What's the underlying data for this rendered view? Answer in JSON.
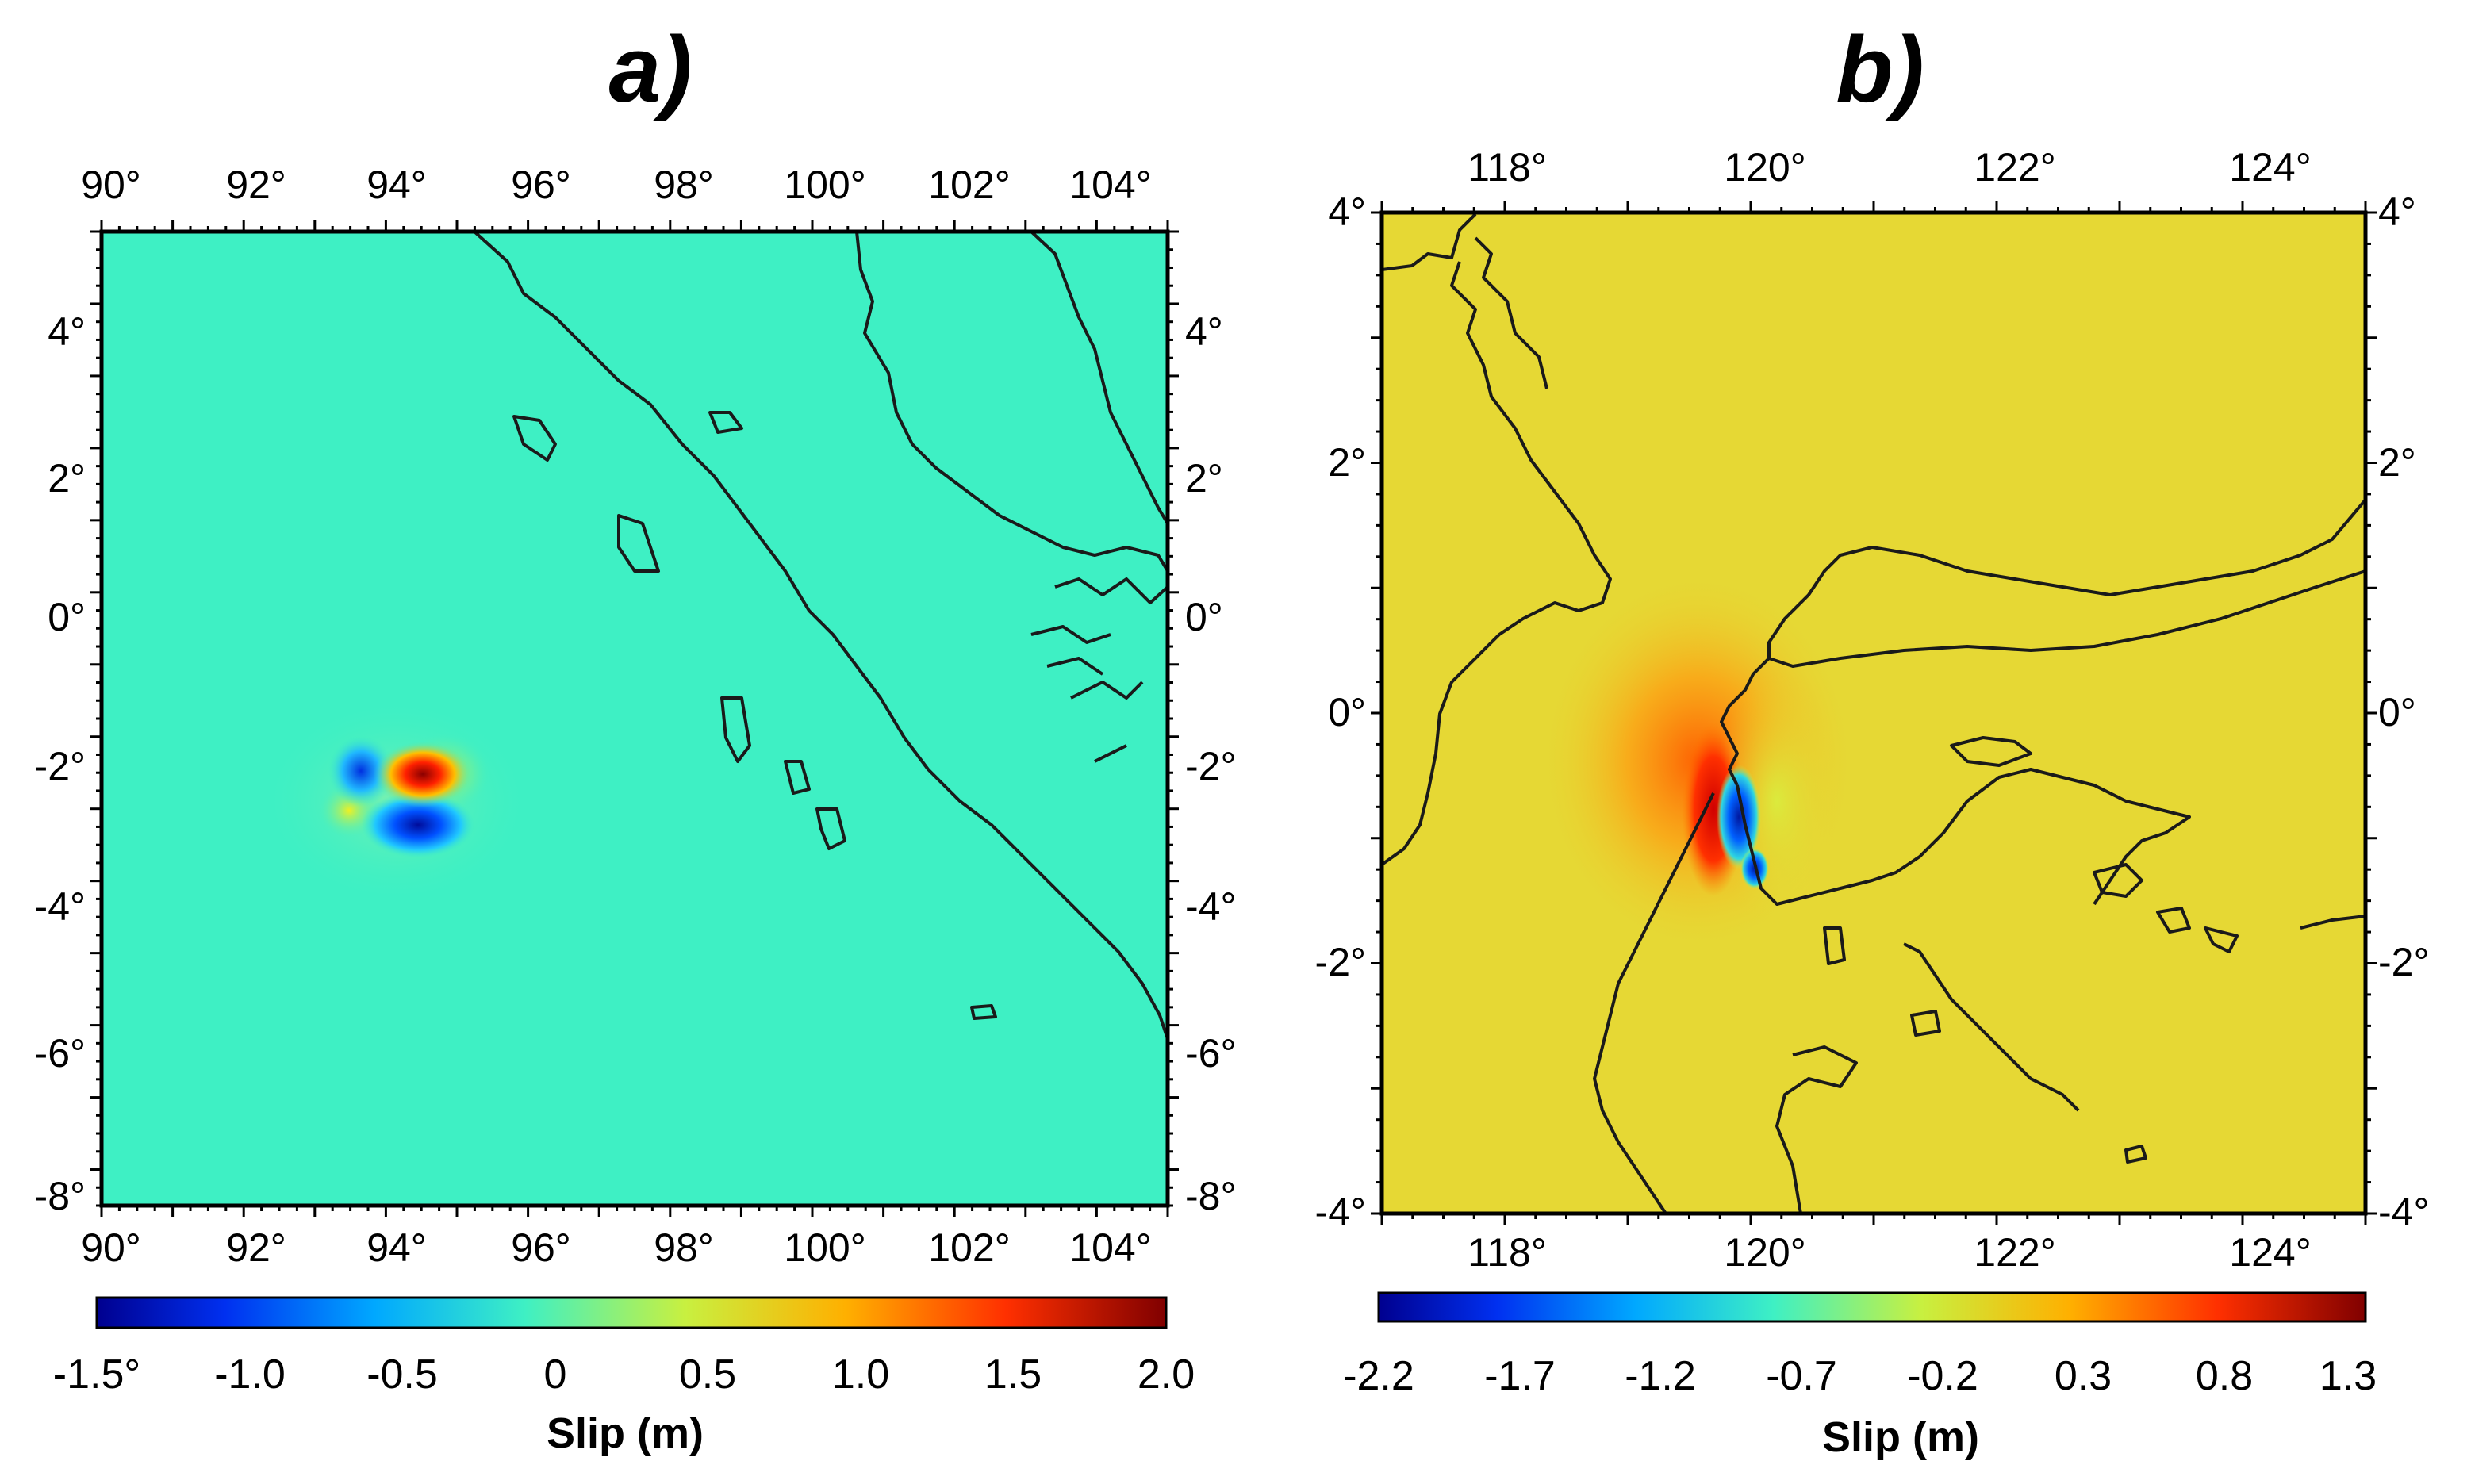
{
  "panels": [
    {
      "title": "a)",
      "x_ticks": [
        "90°",
        "92°",
        "94°",
        "96°",
        "98°",
        "100°",
        "102°",
        "104°"
      ],
      "y_ticks_left": [
        "4°",
        "2°",
        "0°",
        "-2°",
        "-4°",
        "-6°",
        "-8°"
      ],
      "y_ticks_right": [
        "4°",
        "2°",
        "0°",
        "-2°",
        "-4°",
        "-6°",
        "-8°"
      ],
      "colorbar_ticks": [
        "-1.5°",
        "-1.0",
        "-0.5",
        "0",
        "0.5",
        "1.0",
        "1.5",
        "2.0"
      ],
      "colorbar_label": "Slip (m)",
      "background_color": "#3ef0c4"
    },
    {
      "title": "b)",
      "x_ticks": [
        "118°",
        "120°",
        "122°",
        "124°"
      ],
      "y_ticks_left": [
        "4°",
        "2°",
        "0°",
        "-2°",
        "-4°"
      ],
      "y_ticks_right": [
        "4°",
        "2°",
        "0°",
        "-2°",
        "-4°"
      ],
      "colorbar_ticks": [
        "-2.2",
        "-1.7",
        "-1.2",
        "-0.7",
        "-0.2",
        "0.3",
        "0.8",
        "1.3"
      ],
      "colorbar_label": "Slip (m)",
      "background_color": "#e6d834"
    }
  ],
  "colormap": [
    "#00008f",
    "#0040ff",
    "#00c0ff",
    "#3ef0c4",
    "#c8f040",
    "#ffb000",
    "#ff3000",
    "#800000"
  ]
}
